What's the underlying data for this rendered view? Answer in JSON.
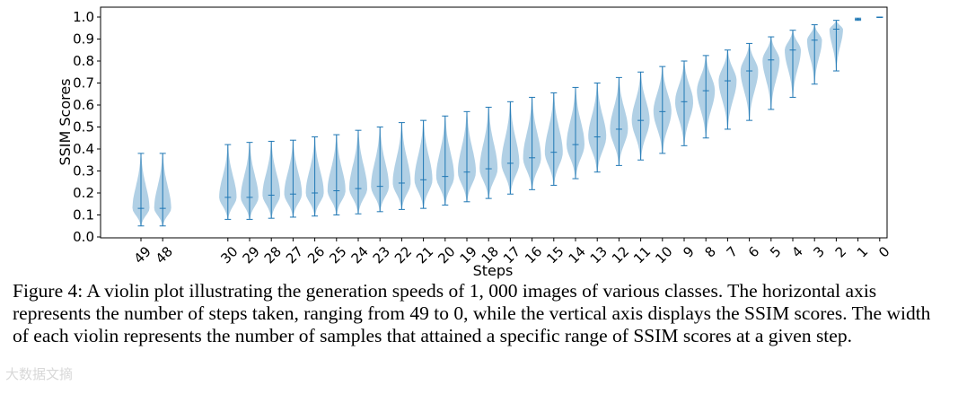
{
  "chart_data": {
    "type": "violin",
    "title": "",
    "xlabel": "Steps",
    "ylabel": "SSIM Scores",
    "ylim": [
      0.0,
      1.02
    ],
    "yticks": [
      "0.0",
      "0.1",
      "0.2",
      "0.3",
      "0.4",
      "0.5",
      "0.6",
      "0.7",
      "0.8",
      "0.9",
      "1.0"
    ],
    "color": "#1f77b4",
    "categories": [
      "49",
      "48",
      "30",
      "29",
      "28",
      "27",
      "26",
      "25",
      "24",
      "23",
      "22",
      "21",
      "20",
      "19",
      "18",
      "17",
      "16",
      "15",
      "14",
      "13",
      "12",
      "11",
      "10",
      "9",
      "8",
      "7",
      "6",
      "5",
      "4",
      "3",
      "2",
      "1",
      "0"
    ],
    "series": [
      {
        "step": "49",
        "min": 0.05,
        "median": 0.13,
        "max": 0.38
      },
      {
        "step": "48",
        "min": 0.05,
        "median": 0.13,
        "max": 0.38
      },
      {
        "step": "30",
        "min": 0.08,
        "median": 0.18,
        "max": 0.42
      },
      {
        "step": "29",
        "min": 0.08,
        "median": 0.18,
        "max": 0.43
      },
      {
        "step": "28",
        "min": 0.085,
        "median": 0.19,
        "max": 0.435
      },
      {
        "step": "27",
        "min": 0.09,
        "median": 0.195,
        "max": 0.44
      },
      {
        "step": "26",
        "min": 0.095,
        "median": 0.2,
        "max": 0.455
      },
      {
        "step": "25",
        "min": 0.1,
        "median": 0.21,
        "max": 0.465
      },
      {
        "step": "24",
        "min": 0.105,
        "median": 0.22,
        "max": 0.485
      },
      {
        "step": "23",
        "min": 0.115,
        "median": 0.23,
        "max": 0.5
      },
      {
        "step": "22",
        "min": 0.125,
        "median": 0.245,
        "max": 0.52
      },
      {
        "step": "21",
        "min": 0.13,
        "median": 0.26,
        "max": 0.53
      },
      {
        "step": "20",
        "min": 0.145,
        "median": 0.275,
        "max": 0.55
      },
      {
        "step": "19",
        "min": 0.16,
        "median": 0.295,
        "max": 0.57
      },
      {
        "step": "18",
        "min": 0.175,
        "median": 0.31,
        "max": 0.59
      },
      {
        "step": "17",
        "min": 0.195,
        "median": 0.335,
        "max": 0.615
      },
      {
        "step": "16",
        "min": 0.215,
        "median": 0.36,
        "max": 0.635
      },
      {
        "step": "15",
        "min": 0.235,
        "median": 0.385,
        "max": 0.655
      },
      {
        "step": "14",
        "min": 0.265,
        "median": 0.42,
        "max": 0.68
      },
      {
        "step": "13",
        "min": 0.295,
        "median": 0.455,
        "max": 0.7
      },
      {
        "step": "12",
        "min": 0.325,
        "median": 0.49,
        "max": 0.725
      },
      {
        "step": "11",
        "min": 0.35,
        "median": 0.53,
        "max": 0.75
      },
      {
        "step": "10",
        "min": 0.38,
        "median": 0.57,
        "max": 0.775
      },
      {
        "step": "9",
        "min": 0.415,
        "median": 0.615,
        "max": 0.8
      },
      {
        "step": "8",
        "min": 0.45,
        "median": 0.665,
        "max": 0.825
      },
      {
        "step": "7",
        "min": 0.49,
        "median": 0.71,
        "max": 0.85
      },
      {
        "step": "6",
        "min": 0.53,
        "median": 0.755,
        "max": 0.88
      },
      {
        "step": "5",
        "min": 0.58,
        "median": 0.805,
        "max": 0.91
      },
      {
        "step": "4",
        "min": 0.635,
        "median": 0.85,
        "max": 0.94
      },
      {
        "step": "3",
        "min": 0.695,
        "median": 0.895,
        "max": 0.965
      },
      {
        "step": "2",
        "min": 0.755,
        "median": 0.945,
        "max": 0.985
      },
      {
        "step": "1",
        "min": 0.985,
        "median": 0.99,
        "max": 0.995
      },
      {
        "step": "0",
        "min": 0.998,
        "median": 1.0,
        "max": 1.0
      }
    ]
  },
  "caption": {
    "text": "Figure 4: A violin plot illustrating the generation speeds of 1, 000 images of various classes. The horizontal axis represents the number of steps taken, ranging from 49 to 0, while the vertical axis displays the SSIM scores. The width of each violin represents the number of samples that attained a specific range of SSIM scores at a given step."
  },
  "watermark": {
    "text": "大数据文摘"
  }
}
